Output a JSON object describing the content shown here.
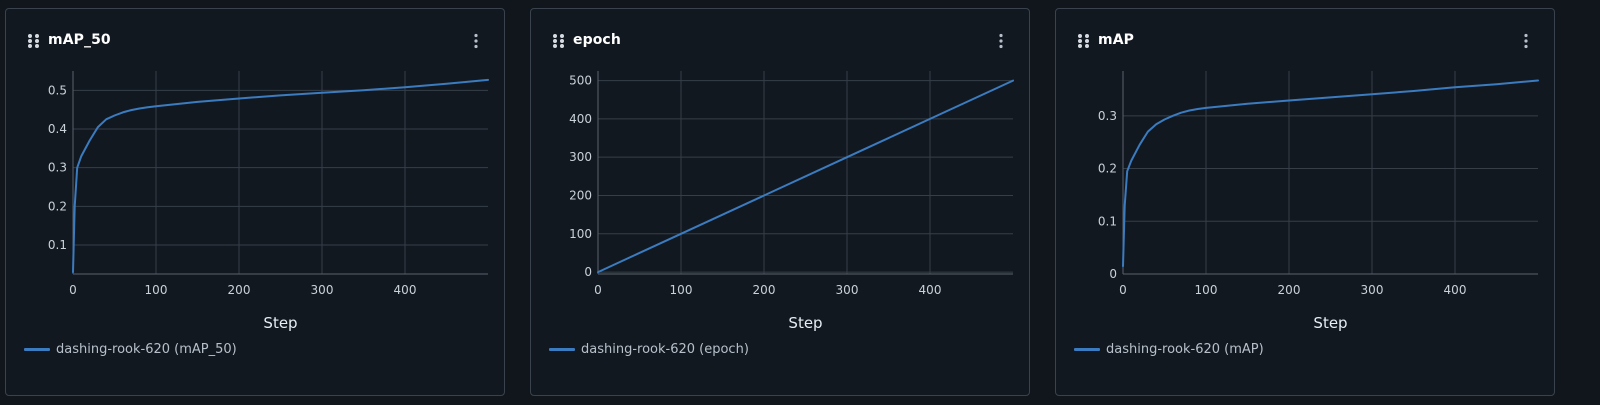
{
  "panels": [
    {
      "title": "mAP_50",
      "legend_label": "dashing-rook-620 (mAP_50)",
      "line_color": "#3b7bbf"
    },
    {
      "title": "epoch",
      "legend_label": "dashing-rook-620 (epoch)",
      "line_color": "#3b7bbf"
    },
    {
      "title": "mAP",
      "legend_label": "dashing-rook-620 (mAP)",
      "line_color": "#3b7bbf"
    }
  ],
  "chart_data": [
    {
      "type": "line",
      "title": "mAP_50",
      "xlabel": "Step",
      "ylabel": "",
      "xlim": [
        0,
        500
      ],
      "ylim": [
        0.025,
        0.55
      ],
      "xticks": [
        0,
        100,
        200,
        300,
        400
      ],
      "yticks": [
        0.1,
        0.2,
        0.3,
        0.4,
        0.5
      ],
      "grid": true,
      "legend_position": "bottom-left",
      "series": [
        {
          "name": "dashing-rook-620 (mAP_50)",
          "x": [
            0,
            2,
            5,
            10,
            20,
            30,
            40,
            50,
            60,
            70,
            80,
            90,
            100,
            150,
            200,
            250,
            300,
            350,
            400,
            450,
            500
          ],
          "y": [
            0.03,
            0.2,
            0.3,
            0.33,
            0.37,
            0.405,
            0.425,
            0.435,
            0.443,
            0.449,
            0.453,
            0.456,
            0.459,
            0.47,
            0.479,
            0.487,
            0.494,
            0.5,
            0.508,
            0.517,
            0.527
          ]
        }
      ]
    },
    {
      "type": "line",
      "title": "epoch",
      "xlabel": "Step",
      "ylabel": "",
      "xlim": [
        0,
        500
      ],
      "ylim": [
        -5,
        525
      ],
      "xticks": [
        0,
        100,
        200,
        300,
        400
      ],
      "yticks": [
        0,
        100,
        200,
        300,
        400,
        500
      ],
      "grid": true,
      "legend_position": "bottom-left",
      "series": [
        {
          "name": "dashing-rook-620 (epoch)",
          "x": [
            0,
            100,
            200,
            300,
            400,
            500
          ],
          "y": [
            0,
            100,
            200,
            300,
            400,
            500
          ]
        }
      ]
    },
    {
      "type": "line",
      "title": "mAP",
      "xlabel": "Step",
      "ylabel": "",
      "xlim": [
        0,
        500
      ],
      "ylim": [
        0,
        0.385
      ],
      "xticks": [
        0,
        100,
        200,
        300,
        400
      ],
      "yticks": [
        0,
        0.1,
        0.2,
        0.3
      ],
      "grid": true,
      "legend_position": "bottom-left",
      "series": [
        {
          "name": "dashing-rook-620 (mAP)",
          "x": [
            0,
            2,
            5,
            10,
            20,
            30,
            40,
            50,
            60,
            70,
            80,
            90,
            100,
            150,
            200,
            250,
            300,
            350,
            400,
            450,
            500
          ],
          "y": [
            0.015,
            0.13,
            0.195,
            0.215,
            0.245,
            0.27,
            0.284,
            0.293,
            0.3,
            0.306,
            0.31,
            0.313,
            0.315,
            0.323,
            0.329,
            0.335,
            0.341,
            0.347,
            0.354,
            0.36,
            0.367
          ]
        }
      ]
    }
  ]
}
